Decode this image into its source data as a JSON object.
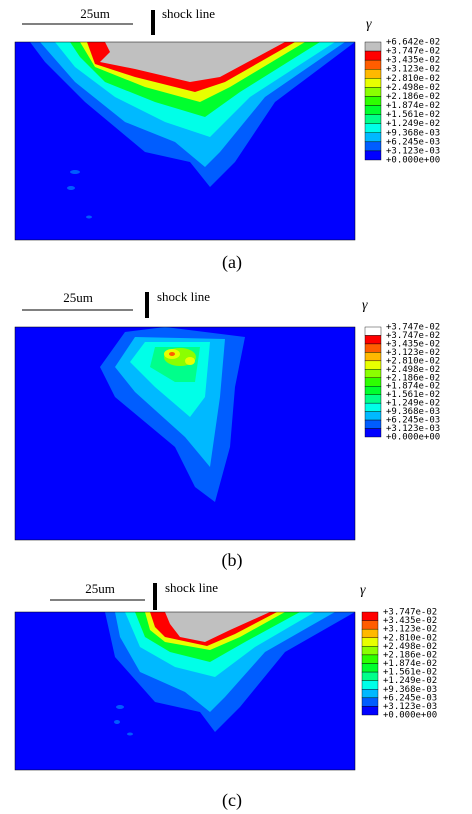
{
  "panels": [
    {
      "scale_label": "25um",
      "marker_label": "shock line",
      "legend_title": "γ",
      "legend_labels": [
        "+6.642e-02",
        "+3.747e-02",
        "+3.435e-02",
        "+3.123e-02",
        "+2.810e-02",
        "+2.498e-02",
        "+2.186e-02",
        "+1.874e-02",
        "+1.561e-02",
        "+1.249e-02",
        "+9.368e-03",
        "+6.245e-03",
        "+3.123e-03",
        "+0.000e+00"
      ],
      "caption": "(a)"
    },
    {
      "scale_label": "25um",
      "marker_label": "shock line",
      "legend_title": "γ",
      "legend_labels": [
        "+3.747e-02",
        "+3.747e-02",
        "+3.435e-02",
        "+3.123e-02",
        "+2.810e-02",
        "+2.498e-02",
        "+2.186e-02",
        "+1.874e-02",
        "+1.561e-02",
        "+1.249e-02",
        "+9.368e-03",
        "+6.245e-03",
        "+3.123e-03",
        "+0.000e+00"
      ],
      "caption": "(b)"
    },
    {
      "scale_label": "25um",
      "marker_label": "shock line",
      "legend_title": "γ",
      "legend_labels": [
        "+3.747e-02",
        "+3.435e-02",
        "+3.123e-02",
        "+2.810e-02",
        "+2.498e-02",
        "+2.186e-02",
        "+1.874e-02",
        "+1.561e-02",
        "+1.249e-02",
        "+9.368e-03",
        "+6.245e-03",
        "+3.123e-03",
        "+0.000e+00"
      ],
      "caption": "(c)"
    }
  ]
}
